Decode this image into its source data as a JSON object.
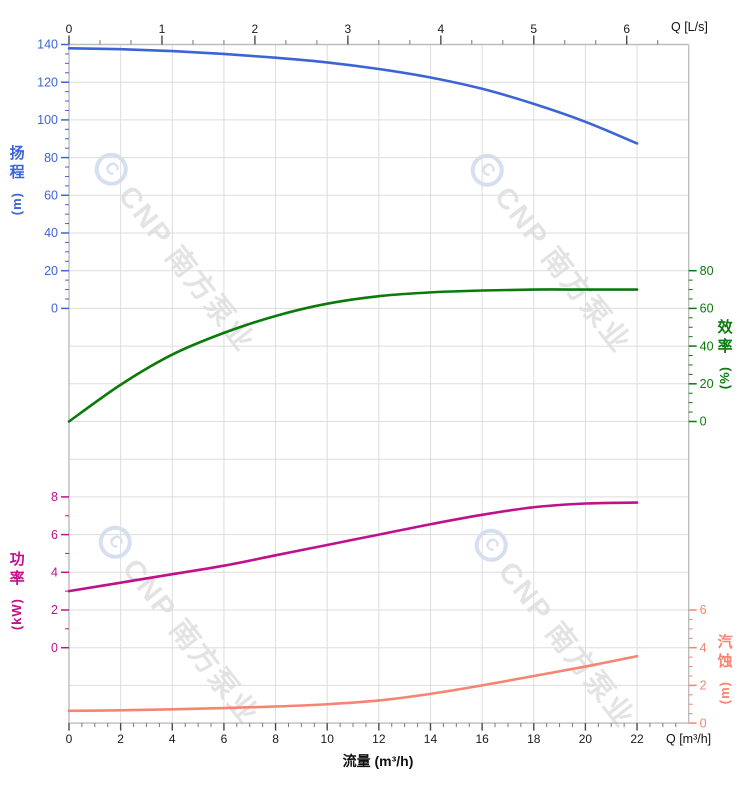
{
  "page": {
    "background": "#ffffff"
  },
  "watermark": {
    "logo_glyph": "C",
    "text": "CNP 南方泵业"
  },
  "chart_data": {
    "type": "line",
    "title": "",
    "grid": true,
    "x_axis_bottom": {
      "title": "流量 (m³/h)",
      "unit_label": "Q [m³/h]",
      "min": 0,
      "max": 24,
      "major_tick_step": 2,
      "minor_tick_step": 0.5,
      "labeled_ticks": [
        0,
        2,
        4,
        6,
        8,
        10,
        12,
        14,
        16,
        18,
        20,
        22
      ]
    },
    "x_axis_top": {
      "unit_label": "Q [L/s]",
      "min": 0,
      "max": 6.67,
      "major_tick_step": 1,
      "minor_ticks_per_major": 3,
      "labeled_ticks": [
        0,
        1,
        2,
        3,
        4,
        5,
        6
      ],
      "lps_to_m3h": 3.6
    },
    "y_axes": {
      "head": {
        "title": "扬程 (m)",
        "side": "left",
        "color": "#3c64d6",
        "ticks": [
          140,
          120,
          100,
          80,
          60,
          40,
          20,
          0
        ],
        "minor_step": 5,
        "value_at_top_row": 140,
        "units_per_row": 20,
        "top_row": 0
      },
      "efficiency": {
        "title": "效率 (%)",
        "side": "right",
        "color": "#0a7a0a",
        "ticks": [
          80,
          60,
          40,
          20,
          0
        ],
        "minor_step": 5,
        "value_at_top_row": 80,
        "units_per_row": 20,
        "top_row": 6
      },
      "power": {
        "title": "功率 (kW)",
        "side": "left",
        "color": "#c1108c",
        "ticks": [
          8,
          6,
          4,
          2,
          0
        ],
        "minor_step": 1,
        "value_at_top_row": 8,
        "units_per_row": 2,
        "top_row": 12
      },
      "npsh": {
        "title": "汽蚀 (m)",
        "side": "right",
        "color": "#f58471",
        "ticks": [
          6,
          4,
          2,
          0
        ],
        "minor_step": 0.5,
        "value_at_top_row": 6,
        "units_per_row": 2,
        "top_row": 15
      }
    },
    "series": [
      {
        "name": "扬程",
        "id": "head-curve",
        "axis": "head",
        "color": "#3c64d6",
        "x": [
          0,
          2,
          4,
          6,
          8,
          10,
          12,
          14,
          16,
          18,
          20,
          22
        ],
        "y": [
          138,
          137.5,
          136.5,
          135,
          133,
          130.5,
          127,
          122.5,
          116.5,
          108.5,
          99,
          87.5
        ]
      },
      {
        "name": "效率",
        "id": "efficiency-curve",
        "axis": "efficiency",
        "color": "#0a7a0a",
        "x": [
          0,
          2,
          4,
          6,
          8,
          10,
          12,
          14,
          16,
          18,
          20,
          22
        ],
        "y": [
          0,
          19.5,
          35.5,
          47,
          56,
          62.5,
          66.5,
          68.5,
          69.5,
          70,
          70,
          70
        ]
      },
      {
        "name": "功率",
        "id": "power-curve",
        "axis": "power",
        "color": "#c1108c",
        "x": [
          0,
          2,
          4,
          6,
          8,
          10,
          12,
          14,
          16,
          18,
          20,
          22
        ],
        "y": [
          3.0,
          3.45,
          3.9,
          4.35,
          4.9,
          5.45,
          6.0,
          6.55,
          7.05,
          7.45,
          7.65,
          7.7
        ]
      },
      {
        "name": "汽蚀",
        "id": "npsh-curve",
        "axis": "npsh",
        "color": "#f58471",
        "x": [
          0,
          2,
          4,
          6,
          8,
          10,
          12,
          14,
          16,
          18,
          20,
          22
        ],
        "y": [
          0.65,
          0.68,
          0.73,
          0.8,
          0.88,
          1.0,
          1.2,
          1.55,
          2.0,
          2.5,
          3.0,
          3.55
        ]
      }
    ]
  }
}
